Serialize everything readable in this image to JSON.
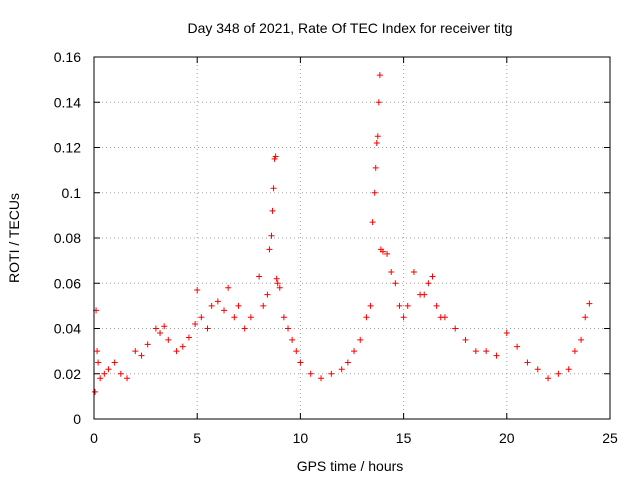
{
  "chart_data": {
    "type": "scatter",
    "title": "Day 348 of 2021, Rate Of TEC Index for receiver titg",
    "xlabel": "GPS time / hours",
    "ylabel": "ROTI / TECUs",
    "xlim": [
      0,
      25
    ],
    "ylim": [
      0,
      0.16
    ],
    "xticks": [
      0,
      5,
      10,
      15,
      20,
      25
    ],
    "yticks": [
      0,
      0.02,
      0.04,
      0.06,
      0.08,
      0.1,
      0.12,
      0.14,
      0.16
    ],
    "xtick_labels": [
      "0",
      "5",
      "10",
      "15",
      "20",
      "25"
    ],
    "ytick_labels": [
      "0",
      "0.02",
      "0.04",
      "0.06",
      "0.08",
      "0.1",
      "0.12",
      "0.14",
      "0.16"
    ],
    "grid": true,
    "marker": "+",
    "series": [
      {
        "name": "ROTI",
        "color": "#ff0000",
        "x": [
          0.05,
          0.1,
          0.15,
          0.2,
          0.3,
          0.5,
          0.7,
          1.0,
          1.3,
          1.6,
          2.0,
          2.3,
          2.6,
          3.0,
          3.2,
          3.4,
          3.6,
          4.0,
          4.3,
          4.6,
          4.9,
          5.0,
          5.2,
          5.5,
          5.7,
          6.0,
          6.3,
          6.5,
          6.8,
          7.0,
          7.3,
          7.6,
          8.0,
          8.2,
          8.4,
          8.5,
          8.6,
          8.65,
          8.7,
          8.75,
          8.8,
          8.85,
          8.9,
          9.0,
          9.2,
          9.4,
          9.6,
          9.8,
          10.0,
          10.5,
          11.0,
          11.5,
          12.0,
          12.3,
          12.6,
          12.9,
          13.2,
          13.4,
          13.5,
          13.6,
          13.65,
          13.7,
          13.75,
          13.8,
          13.85,
          13.9,
          14.0,
          14.2,
          14.4,
          14.6,
          14.8,
          15.0,
          15.2,
          15.5,
          15.8,
          16.0,
          16.2,
          16.4,
          16.6,
          16.8,
          17.0,
          17.5,
          18.0,
          18.5,
          19.0,
          19.5,
          20.0,
          20.5,
          21.0,
          21.5,
          22.0,
          22.5,
          23.0,
          23.3,
          23.6,
          23.8,
          24.0
        ],
        "y": [
          0.012,
          0.048,
          0.03,
          0.025,
          0.018,
          0.02,
          0.022,
          0.025,
          0.02,
          0.018,
          0.03,
          0.028,
          0.033,
          0.04,
          0.038,
          0.041,
          0.035,
          0.03,
          0.032,
          0.036,
          0.042,
          0.057,
          0.045,
          0.04,
          0.05,
          0.052,
          0.048,
          0.058,
          0.045,
          0.05,
          0.04,
          0.045,
          0.063,
          0.05,
          0.055,
          0.075,
          0.081,
          0.092,
          0.102,
          0.115,
          0.116,
          0.062,
          0.06,
          0.058,
          0.045,
          0.04,
          0.035,
          0.03,
          0.025,
          0.02,
          0.018,
          0.02,
          0.022,
          0.025,
          0.03,
          0.035,
          0.045,
          0.05,
          0.087,
          0.1,
          0.111,
          0.122,
          0.125,
          0.14,
          0.152,
          0.075,
          0.074,
          0.073,
          0.065,
          0.06,
          0.05,
          0.045,
          0.05,
          0.065,
          0.055,
          0.055,
          0.06,
          0.063,
          0.05,
          0.045,
          0.045,
          0.04,
          0.035,
          0.03,
          0.03,
          0.028,
          0.038,
          0.032,
          0.025,
          0.022,
          0.018,
          0.02,
          0.022,
          0.03,
          0.035,
          0.045,
          0.051
        ]
      }
    ]
  }
}
